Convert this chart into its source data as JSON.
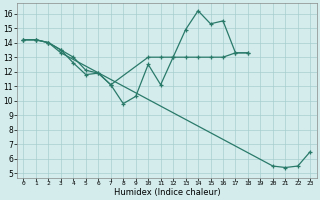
{
  "xlabel": "Humidex (Indice chaleur)",
  "bg_color": "#d4ecec",
  "grid_color": "#a8cece",
  "line_color": "#2a7a6a",
  "xlim": [
    -0.5,
    23.5
  ],
  "ylim": [
    4.7,
    16.7
  ],
  "xticks": [
    0,
    1,
    2,
    3,
    4,
    5,
    6,
    7,
    8,
    9,
    10,
    11,
    12,
    13,
    14,
    15,
    16,
    17,
    18,
    19,
    20,
    21,
    22,
    23
  ],
  "yticks": [
    5,
    6,
    7,
    8,
    9,
    10,
    11,
    12,
    13,
    14,
    15,
    16
  ],
  "line1_x": [
    0,
    1,
    2,
    3,
    4,
    5,
    6,
    7,
    8,
    9,
    10,
    11,
    12,
    13,
    14,
    15,
    16,
    17,
    18
  ],
  "line1_y": [
    14.2,
    14.2,
    14.0,
    13.5,
    12.6,
    11.8,
    11.9,
    11.1,
    9.8,
    10.3,
    12.5,
    11.1,
    13.0,
    14.9,
    16.2,
    15.3,
    15.5,
    13.3,
    13.3
  ],
  "line2_x": [
    0,
    1,
    2,
    3,
    4,
    5,
    6,
    7,
    10,
    11,
    12,
    13,
    14,
    15,
    16,
    17,
    18
  ],
  "line2_y": [
    14.2,
    14.2,
    14.0,
    13.5,
    13.0,
    12.1,
    11.9,
    11.1,
    13.0,
    13.0,
    13.0,
    13.0,
    13.0,
    13.0,
    13.0,
    13.3,
    13.3
  ],
  "line3_x": [
    0,
    1,
    2,
    3,
    20,
    21,
    22,
    23
  ],
  "line3_y": [
    14.2,
    14.2,
    14.0,
    13.3,
    5.5,
    5.4,
    5.5,
    6.5
  ]
}
